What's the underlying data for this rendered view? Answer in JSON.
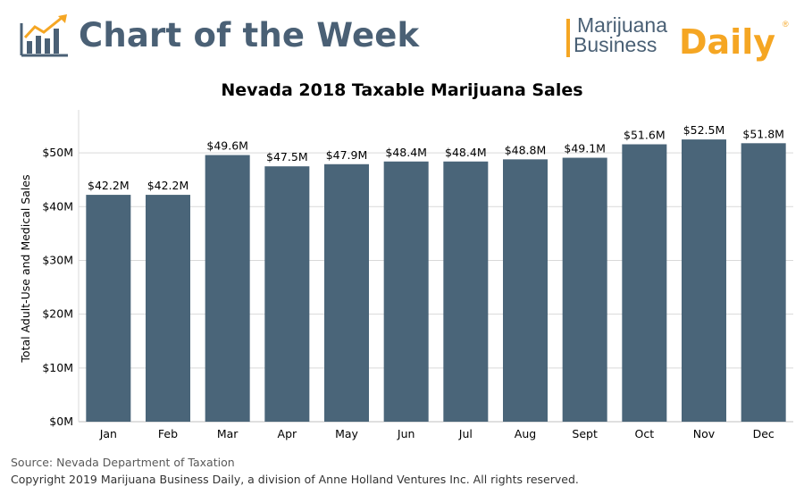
{
  "header": {
    "title": "Chart of the Week",
    "brand_line1": "Marijuana",
    "brand_line2": "Business",
    "brand_daily": "Daily",
    "brand_mark": "®"
  },
  "colors": {
    "bar": "#4a6579",
    "title_blue": "#4a6075",
    "brand_orange": "#f5a623",
    "grid": "#d9d9d9"
  },
  "chart_data": {
    "type": "bar",
    "title": "Nevada 2018 Taxable Marijuana Sales",
    "xlabel": "",
    "ylabel": "Total Adult-Use and Medical Sales",
    "categories": [
      "Jan",
      "Feb",
      "Mar",
      "Apr",
      "May",
      "Jun",
      "Jul",
      "Aug",
      "Sept",
      "Oct",
      "Nov",
      "Dec"
    ],
    "values": [
      42.2,
      42.2,
      49.6,
      47.5,
      47.9,
      48.4,
      48.4,
      48.8,
      49.1,
      51.6,
      52.5,
      51.8
    ],
    "value_labels": [
      "$42.2M",
      "$42.2M",
      "$49.6M",
      "$47.5M",
      "$47.9M",
      "$48.4M",
      "$48.4M",
      "$48.8M",
      "$49.1M",
      "$51.6M",
      "$52.5M",
      "$51.8M"
    ],
    "unit": "millions USD",
    "ylim": [
      0,
      58
    ],
    "yticks": [
      0,
      10,
      20,
      30,
      40,
      50
    ],
    "ytick_labels": [
      "$0M",
      "$10M",
      "$20M",
      "$30M",
      "$40M",
      "$50M"
    ],
    "grid": true,
    "legend": "none"
  },
  "footer": {
    "source": "Source: Nevada Department of Taxation",
    "copyright": "Copyright 2019 Marijuana Business Daily, a division of Anne Holland Ventures Inc. All rights reserved."
  }
}
